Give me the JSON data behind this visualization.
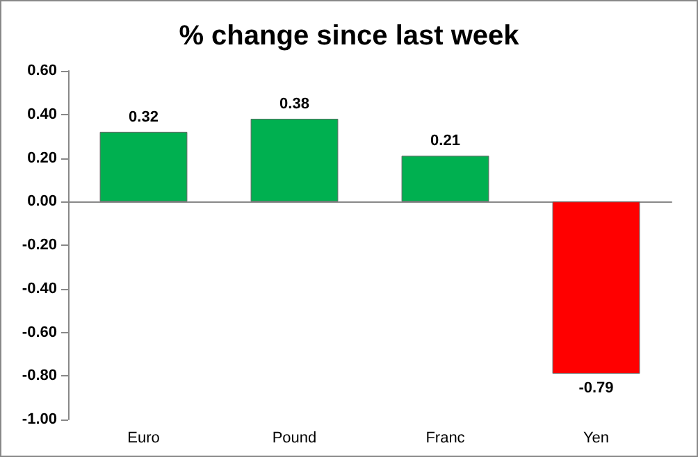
{
  "chart_data": {
    "type": "bar",
    "title": "% change since last week",
    "categories": [
      "Euro",
      "Pound",
      "Franc",
      "Yen"
    ],
    "values": [
      0.32,
      0.38,
      0.21,
      -0.79
    ],
    "colors": [
      "#00b050",
      "#00b050",
      "#00b050",
      "#ff0000"
    ],
    "ylim": [
      -1.0,
      0.6
    ],
    "yticks": [
      {
        "value": -1.0,
        "label": "-1.00"
      },
      {
        "value": -0.8,
        "label": "-0.80"
      },
      {
        "value": -0.6,
        "label": "-0.60"
      },
      {
        "value": -0.4,
        "label": "-0.40"
      },
      {
        "value": -0.2,
        "label": "-0.20"
      },
      {
        "value": 0,
        "label": "0.00"
      },
      {
        "value": 0.2,
        "label": "0.20"
      },
      {
        "value": 0.4,
        "label": "0.40"
      },
      {
        "value": 0.6,
        "label": "0.60"
      }
    ],
    "data_labels": true
  }
}
